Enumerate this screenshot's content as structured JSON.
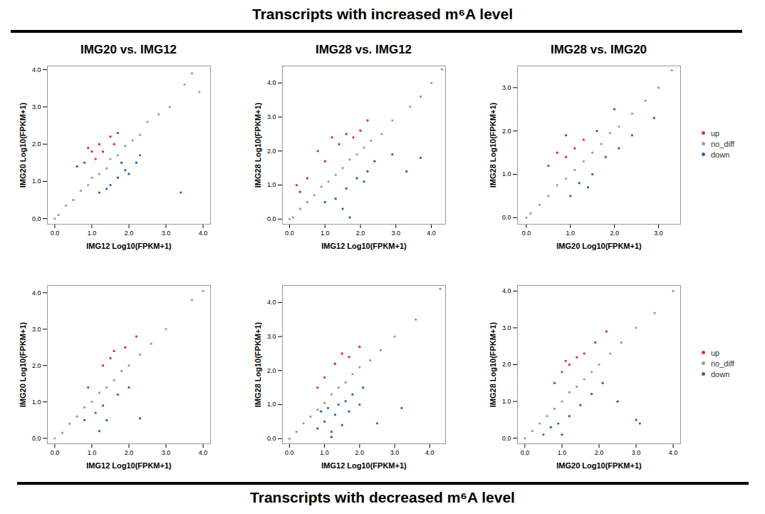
{
  "header": "Transcripts with increased m⁶A level",
  "footer": "Transcripts with decreased m⁶A level",
  "chart_data": [
    {
      "type": "scatter",
      "title": "IMG20 vs. IMG12",
      "x_label": "IMG12 Log10(FPKM+1)",
      "y_label": "IMG20 Log10(FPKM+1)",
      "xlim": [
        -0.2,
        4.2
      ],
      "ylim": [
        -0.15,
        4.1
      ],
      "xticks": [
        0,
        1,
        2,
        3,
        4
      ],
      "yticks": [
        0,
        1,
        2,
        3,
        4
      ],
      "series": [
        {
          "name": "up",
          "color": "#e0303a",
          "x": [
            0.6,
            0.8,
            1.0,
            1.1,
            1.2,
            1.3,
            1.5,
            1.7,
            1.6,
            0.9
          ],
          "values": [
            1.4,
            1.5,
            1.8,
            1.6,
            2.0,
            1.8,
            2.2,
            2.3,
            2.0,
            1.9
          ]
        },
        {
          "name": "no_diff",
          "color": "#a0a0a0",
          "x": [
            0,
            0.1,
            0.3,
            0.5,
            0.7,
            0.9,
            1.0,
            1.2,
            1.4,
            1.5,
            1.7,
            1.9,
            2.1,
            2.3,
            2.5,
            2.8,
            3.1,
            3.5,
            3.7,
            3.9
          ],
          "values": [
            0,
            0.1,
            0.35,
            0.5,
            0.75,
            0.9,
            1.1,
            1.2,
            1.35,
            1.6,
            1.7,
            1.95,
            2.1,
            2.25,
            2.6,
            2.8,
            3.0,
            3.6,
            3.9,
            3.4
          ]
        },
        {
          "name": "down",
          "color": "#2a6db5",
          "x": [
            1.2,
            1.5,
            1.7,
            1.9,
            2.0,
            2.2,
            1.4,
            2.3,
            1.8,
            3.4
          ],
          "values": [
            0.7,
            0.9,
            1.1,
            1.3,
            1.2,
            1.5,
            0.8,
            1.7,
            1.5,
            0.7
          ]
        }
      ]
    },
    {
      "type": "scatter",
      "title": "IMG28 vs. IMG12",
      "x_label": "IMG12 Log10(FPKM+1)",
      "y_label": "IMG28 Log10(FPKM+1)",
      "xlim": [
        -0.2,
        4.4
      ],
      "ylim": [
        -0.15,
        4.5
      ],
      "xticks": [
        0,
        1,
        2,
        3,
        4
      ],
      "yticks": [
        0,
        1,
        2,
        3,
        4
      ],
      "series": [
        {
          "name": "up",
          "color": "#e0303a",
          "x": [
            0.3,
            0.8,
            1.2,
            1.0,
            1.4,
            1.6,
            1.8,
            0.5,
            0.2,
            2.0,
            2.2
          ],
          "values": [
            0.8,
            2.0,
            2.4,
            1.7,
            2.2,
            2.5,
            2.4,
            1.2,
            1.0,
            2.6,
            2.9
          ]
        },
        {
          "name": "no_diff",
          "color": "#a0a0a0",
          "x": [
            0,
            0.1,
            0.3,
            0.5,
            0.7,
            0.9,
            1.1,
            1.3,
            1.5,
            1.7,
            1.9,
            2.1,
            2.3,
            2.6,
            2.9,
            3.4,
            3.7,
            4.0,
            4.3
          ],
          "values": [
            0,
            0.05,
            0.3,
            0.5,
            0.7,
            0.95,
            1.1,
            1.3,
            1.5,
            1.75,
            1.9,
            2.1,
            2.3,
            2.5,
            2.9,
            3.3,
            3.6,
            4.0,
            4.4
          ]
        },
        {
          "name": "down",
          "color": "#2a6db5",
          "x": [
            1.0,
            1.3,
            1.6,
            1.9,
            2.2,
            2.4,
            2.1,
            1.7,
            2.9,
            3.3,
            3.7,
            1.5
          ],
          "values": [
            0.5,
            0.6,
            0.9,
            1.2,
            1.4,
            1.7,
            1.1,
            0.05,
            1.9,
            1.4,
            1.8,
            0.3
          ]
        }
      ]
    },
    {
      "type": "scatter",
      "title": "IMG28 vs. IMG20",
      "x_label": "IMG20 Log10(FPKM+1)",
      "y_label": "IMG28 Log10(FPKM+1)",
      "xlim": [
        -0.2,
        3.5
      ],
      "ylim": [
        -0.15,
        3.5
      ],
      "xticks": [
        0,
        1,
        2,
        3
      ],
      "yticks": [
        0,
        1,
        2,
        3
      ],
      "legend": "right",
      "series": [
        {
          "name": "up",
          "color": "#e0303a",
          "x": [
            0.5,
            0.7,
            0.9,
            1.1,
            1.3,
            0.9,
            1.6,
            2.0
          ],
          "values": [
            1.2,
            1.5,
            1.4,
            1.6,
            1.8,
            1.9,
            2.0,
            2.5
          ]
        },
        {
          "name": "no_diff",
          "color": "#a0a0a0",
          "x": [
            0,
            0.1,
            0.3,
            0.5,
            0.7,
            0.9,
            1.1,
            1.3,
            1.5,
            1.7,
            1.9,
            2.1,
            2.4,
            2.7,
            3.0,
            3.3
          ],
          "values": [
            0,
            0.1,
            0.3,
            0.5,
            0.75,
            0.9,
            1.1,
            1.3,
            1.5,
            1.7,
            1.95,
            2.1,
            2.4,
            2.7,
            3.0,
            3.4
          ]
        },
        {
          "name": "down",
          "color": "#2a6db5",
          "x": [
            1.0,
            1.2,
            1.5,
            1.8,
            2.1,
            2.4,
            2.9,
            1.4
          ],
          "values": [
            0.5,
            0.8,
            1.0,
            1.4,
            1.6,
            1.9,
            2.3,
            0.7
          ]
        }
      ]
    },
    {
      "type": "scatter",
      "x_label": "IMG12 Log10(FPKM+1)",
      "y_label": "IMG20 Log10(FPKM+1)",
      "xlim": [
        -0.2,
        4.2
      ],
      "ylim": [
        -0.15,
        4.2
      ],
      "xticks": [
        0,
        1,
        2,
        3,
        4
      ],
      "yticks": [
        0,
        1,
        2,
        3,
        4
      ],
      "series": [
        {
          "name": "up",
          "color": "#e0303a",
          "x": [
            1.3,
            1.6,
            1.5,
            1.9,
            2.2,
            0.9
          ],
          "values": [
            2.0,
            2.4,
            2.2,
            2.5,
            2.8,
            1.4
          ]
        },
        {
          "name": "no_diff",
          "color": "#a0a0a0",
          "x": [
            0,
            0.2,
            0.4,
            0.6,
            0.8,
            1.0,
            1.2,
            1.4,
            1.6,
            1.8,
            2.0,
            2.3,
            2.6,
            3.0,
            3.7,
            4.0
          ],
          "values": [
            0,
            0.15,
            0.4,
            0.6,
            0.85,
            1.0,
            1.25,
            1.4,
            1.6,
            1.85,
            2.0,
            2.3,
            2.6,
            3.0,
            3.8,
            4.05
          ]
        },
        {
          "name": "down",
          "color": "#2a6db5",
          "x": [
            0.8,
            1.1,
            1.3,
            1.4,
            1.7,
            2.0,
            2.3,
            1.2
          ],
          "values": [
            0.5,
            0.7,
            0.9,
            0.5,
            1.2,
            1.4,
            0.55,
            0.2
          ]
        }
      ]
    },
    {
      "type": "scatter",
      "x_label": "IMG12 Log10(FPKM+1)",
      "y_label": "IMG28 Log10(FPKM+1)",
      "xlim": [
        -0.2,
        4.45
      ],
      "ylim": [
        -0.15,
        4.5
      ],
      "xticks": [
        0,
        1,
        2,
        3,
        4
      ],
      "yticks": [
        0,
        1,
        2,
        3,
        4
      ],
      "series": [
        {
          "name": "up",
          "color": "#e0303a",
          "x": [
            1.0,
            1.3,
            1.5,
            1.7,
            2.0,
            0.8
          ],
          "values": [
            1.8,
            2.2,
            2.5,
            2.4,
            2.7,
            1.5
          ]
        },
        {
          "name": "no_diff",
          "color": "#a0a0a0",
          "x": [
            0,
            0.2,
            0.4,
            0.6,
            0.8,
            1.0,
            1.2,
            1.4,
            1.6,
            1.8,
            2.0,
            2.3,
            2.6,
            3.0,
            3.6,
            4.3
          ],
          "values": [
            0,
            0.2,
            0.45,
            0.65,
            0.85,
            1.05,
            1.3,
            1.5,
            1.65,
            1.9,
            2.1,
            2.3,
            2.6,
            3.0,
            3.5,
            4.4
          ]
        },
        {
          "name": "down",
          "color": "#2a6db5",
          "x": [
            0.8,
            1.0,
            1.1,
            1.2,
            1.3,
            1.4,
            1.5,
            1.6,
            1.7,
            1.8,
            2.0,
            2.1,
            1.2,
            2.5,
            3.2,
            0.9
          ],
          "values": [
            0.3,
            0.5,
            0.9,
            0.2,
            0.7,
            1.0,
            0.4,
            1.1,
            0.8,
            1.3,
            1.0,
            1.5,
            0.05,
            0.45,
            0.9,
            0.8
          ]
        }
      ]
    },
    {
      "type": "scatter",
      "x_label": "IMG20 Log10(FPKM+1)",
      "y_label": "IMG28 Log10(FPKM+1)",
      "xlim": [
        -0.2,
        4.2
      ],
      "ylim": [
        -0.15,
        4.15
      ],
      "xticks": [
        0,
        1,
        2,
        3,
        4
      ],
      "yticks": [
        0,
        1,
        2,
        3,
        4
      ],
      "legend": "right",
      "series": [
        {
          "name": "up",
          "color": "#e0303a",
          "x": [
            0.8,
            1.0,
            1.2,
            1.4,
            1.6,
            1.9,
            2.2,
            1.1
          ],
          "values": [
            1.5,
            1.8,
            2.0,
            2.2,
            2.3,
            2.6,
            2.9,
            2.1
          ]
        },
        {
          "name": "no_diff",
          "color": "#a0a0a0",
          "x": [
            0,
            0.2,
            0.4,
            0.6,
            0.8,
            1.0,
            1.2,
            1.4,
            1.6,
            1.8,
            2.0,
            2.3,
            2.6,
            3.0,
            3.5,
            4.0
          ],
          "values": [
            0,
            0.2,
            0.4,
            0.6,
            0.8,
            1.0,
            1.25,
            1.4,
            1.6,
            1.8,
            2.0,
            2.3,
            2.6,
            3.0,
            3.4,
            4.0
          ]
        },
        {
          "name": "down",
          "color": "#2a6db5",
          "x": [
            0.5,
            0.7,
            0.9,
            1.0,
            1.2,
            1.5,
            1.8,
            2.5,
            3.0,
            3.1,
            2.1
          ],
          "values": [
            0.1,
            0.3,
            0.4,
            0.1,
            0.6,
            0.9,
            1.2,
            1.0,
            0.5,
            0.4,
            1.5
          ]
        }
      ]
    }
  ]
}
